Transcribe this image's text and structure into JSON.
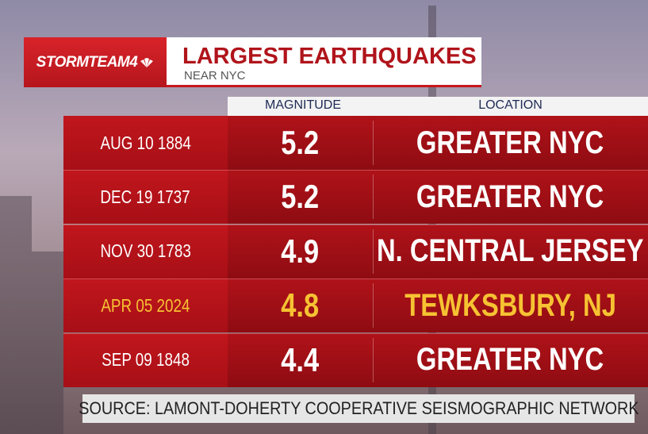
{
  "header": {
    "brand": "STORMTEAM4",
    "title": "LARGEST EARTHQUAKES",
    "subtitle": "NEAR NYC"
  },
  "table": {
    "columns": [
      "MAGNITUDE",
      "LOCATION"
    ],
    "rows": [
      [
        "AUG 10 1884",
        "5.2",
        "GREATER NYC"
      ],
      [
        "DEC 19 1737",
        "5.2",
        "GREATER NYC"
      ],
      [
        "NOV 30 1783",
        "4.9",
        "N. CENTRAL JERSEY"
      ],
      [
        "APR 05 2024",
        "4.8",
        "TEWKSBURY, NJ"
      ],
      [
        "SEP 09 1848",
        "4.4",
        "GREATER NYC"
      ]
    ],
    "text_color": "#ffffff",
    "highlight": {
      "row": 3,
      "color": "#f6c232"
    }
  },
  "source": "SOURCE: LAMONT-DOHERTY COOPERATIVE SEISMOGRAPHIC NETWORK"
}
